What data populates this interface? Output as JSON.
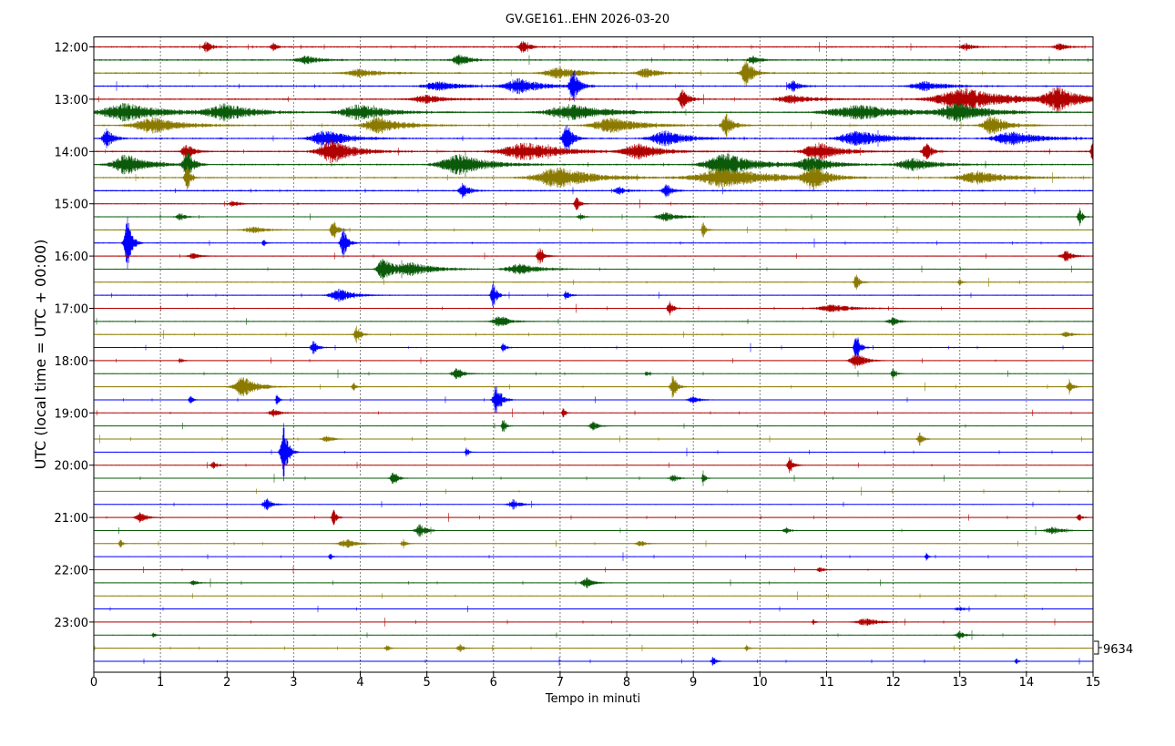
{
  "chart_data": {
    "type": "line",
    "title": "GV.GE161..EHN 2026-03-20",
    "xlabel": "Tempo in minuti",
    "ylabel": "UTC (local time = UTC + 00:00)",
    "xlim": [
      0,
      15
    ],
    "x_ticks": [
      "0",
      "1",
      "2",
      "3",
      "4",
      "5",
      "6",
      "7",
      "8",
      "9",
      "10",
      "11",
      "12",
      "13",
      "14",
      "15"
    ],
    "y_tick_labels": [
      "12:00",
      "13:00",
      "14:00",
      "15:00",
      "16:00",
      "17:00",
      "18:00",
      "19:00",
      "20:00",
      "21:00",
      "22:00",
      "23:00"
    ],
    "scale_label": "9634",
    "grid": "vertical dotted",
    "colors": [
      "#b00000",
      "#0a5a0a",
      "#8a7a00",
      "#0000ff"
    ],
    "traces_start": "12:00",
    "trace_minutes": 15,
    "events": [
      {
        "row": 0,
        "t": 1.7,
        "a": 0.45,
        "d": 0.08
      },
      {
        "row": 0,
        "t": 2.7,
        "a": 0.3,
        "d": 0.06
      },
      {
        "row": 0,
        "t": 6.45,
        "a": 0.55,
        "d": 0.08
      },
      {
        "row": 0,
        "t": 13.1,
        "a": 0.25,
        "d": 0.1
      },
      {
        "row": 0,
        "t": 14.5,
        "a": 0.3,
        "d": 0.1
      },
      {
        "row": 1,
        "t": 3.2,
        "a": 0.3,
        "d": 0.2
      },
      {
        "row": 1,
        "t": 5.5,
        "a": 0.45,
        "d": 0.15
      },
      {
        "row": 1,
        "t": 9.9,
        "a": 0.3,
        "d": 0.1
      },
      {
        "row": 2,
        "t": 4.0,
        "a": 0.3,
        "d": 0.3
      },
      {
        "row": 2,
        "t": 7.0,
        "a": 0.45,
        "d": 0.3
      },
      {
        "row": 2,
        "t": 9.8,
        "a": 1.1,
        "d": 0.1
      },
      {
        "row": 2,
        "t": 8.3,
        "a": 0.35,
        "d": 0.2
      },
      {
        "row": 3,
        "t": 5.2,
        "a": 0.35,
        "d": 0.3
      },
      {
        "row": 3,
        "t": 6.4,
        "a": 0.6,
        "d": 0.3
      },
      {
        "row": 3,
        "t": 7.2,
        "a": 1.3,
        "d": 0.08
      },
      {
        "row": 3,
        "t": 10.5,
        "a": 0.4,
        "d": 0.1
      },
      {
        "row": 3,
        "t": 12.5,
        "a": 0.35,
        "d": 0.3
      },
      {
        "row": 4,
        "t": 8.85,
        "a": 0.85,
        "d": 0.08
      },
      {
        "row": 4,
        "t": 13.1,
        "a": 0.85,
        "d": 0.6
      },
      {
        "row": 4,
        "t": 14.5,
        "a": 0.9,
        "d": 0.3
      },
      {
        "row": 4,
        "t": 5.0,
        "a": 0.3,
        "d": 0.3
      },
      {
        "row": 4,
        "t": 10.5,
        "a": 0.35,
        "d": 0.3
      },
      {
        "row": 5,
        "t": 0.5,
        "a": 0.7,
        "d": 0.5
      },
      {
        "row": 5,
        "t": 2.0,
        "a": 0.6,
        "d": 0.4
      },
      {
        "row": 5,
        "t": 4.0,
        "a": 0.6,
        "d": 0.4
      },
      {
        "row": 5,
        "t": 7.2,
        "a": 0.6,
        "d": 0.5
      },
      {
        "row": 5,
        "t": 11.5,
        "a": 0.6,
        "d": 0.6
      },
      {
        "row": 5,
        "t": 13.0,
        "a": 0.7,
        "d": 0.4
      },
      {
        "row": 6,
        "t": 0.9,
        "a": 0.6,
        "d": 0.4
      },
      {
        "row": 6,
        "t": 4.3,
        "a": 0.7,
        "d": 0.3
      },
      {
        "row": 6,
        "t": 9.5,
        "a": 0.9,
        "d": 0.1
      },
      {
        "row": 6,
        "t": 13.5,
        "a": 0.8,
        "d": 0.2
      },
      {
        "row": 6,
        "t": 7.8,
        "a": 0.6,
        "d": 0.4
      },
      {
        "row": 7,
        "t": 0.2,
        "a": 1.0,
        "d": 0.08
      },
      {
        "row": 7,
        "t": 3.5,
        "a": 0.7,
        "d": 0.3
      },
      {
        "row": 7,
        "t": 7.1,
        "a": 1.3,
        "d": 0.08
      },
      {
        "row": 7,
        "t": 8.6,
        "a": 0.6,
        "d": 0.3
      },
      {
        "row": 7,
        "t": 11.5,
        "a": 0.6,
        "d": 0.4
      },
      {
        "row": 7,
        "t": 13.8,
        "a": 0.5,
        "d": 0.4
      },
      {
        "row": 8,
        "t": 1.4,
        "a": 0.6,
        "d": 0.1
      },
      {
        "row": 8,
        "t": 3.6,
        "a": 0.9,
        "d": 0.3
      },
      {
        "row": 8,
        "t": 6.5,
        "a": 0.7,
        "d": 0.5
      },
      {
        "row": 8,
        "t": 8.2,
        "a": 0.6,
        "d": 0.3
      },
      {
        "row": 8,
        "t": 10.9,
        "a": 0.7,
        "d": 0.3
      },
      {
        "row": 8,
        "t": 12.5,
        "a": 0.7,
        "d": 0.08
      },
      {
        "row": 8,
        "t": 15.0,
        "a": 0.8,
        "d": 0.05
      },
      {
        "row": 9,
        "t": 0.5,
        "a": 0.8,
        "d": 0.3
      },
      {
        "row": 9,
        "t": 1.4,
        "a": 1.2,
        "d": 0.08
      },
      {
        "row": 9,
        "t": 5.5,
        "a": 0.8,
        "d": 0.4
      },
      {
        "row": 9,
        "t": 9.5,
        "a": 0.9,
        "d": 0.4
      },
      {
        "row": 9,
        "t": 10.8,
        "a": 0.6,
        "d": 0.3
      },
      {
        "row": 9,
        "t": 12.3,
        "a": 0.5,
        "d": 0.3
      },
      {
        "row": 10,
        "t": 1.4,
        "a": 1.3,
        "d": 0.05
      },
      {
        "row": 10,
        "t": 7.0,
        "a": 0.8,
        "d": 0.5
      },
      {
        "row": 10,
        "t": 9.5,
        "a": 0.8,
        "d": 0.6
      },
      {
        "row": 10,
        "t": 10.8,
        "a": 0.9,
        "d": 0.2
      },
      {
        "row": 10,
        "t": 13.3,
        "a": 0.5,
        "d": 0.4
      },
      {
        "row": 11,
        "t": 5.55,
        "a": 0.65,
        "d": 0.08
      },
      {
        "row": 11,
        "t": 8.6,
        "a": 0.55,
        "d": 0.08
      },
      {
        "row": 11,
        "t": 7.9,
        "a": 0.3,
        "d": 0.1
      },
      {
        "row": 12,
        "t": 7.25,
        "a": 0.6,
        "d": 0.05
      },
      {
        "row": 12,
        "t": 2.1,
        "a": 0.25,
        "d": 0.1
      },
      {
        "row": 13,
        "t": 1.3,
        "a": 0.3,
        "d": 0.08
      },
      {
        "row": 13,
        "t": 8.6,
        "a": 0.35,
        "d": 0.2
      },
      {
        "row": 13,
        "t": 14.8,
        "a": 0.8,
        "d": 0.04
      },
      {
        "row": 13,
        "t": 7.3,
        "a": 0.3,
        "d": 0.05
      },
      {
        "row": 14,
        "t": 3.6,
        "a": 0.9,
        "d": 0.06
      },
      {
        "row": 14,
        "t": 9.15,
        "a": 0.6,
        "d": 0.04
      },
      {
        "row": 14,
        "t": 2.4,
        "a": 0.25,
        "d": 0.2
      },
      {
        "row": 15,
        "t": 0.5,
        "a": 2.4,
        "d": 0.06
      },
      {
        "row": 15,
        "t": 3.75,
        "a": 1.2,
        "d": 0.06
      },
      {
        "row": 15,
        "t": 2.55,
        "a": 0.35,
        "d": 0.03
      },
      {
        "row": 16,
        "t": 6.7,
        "a": 0.8,
        "d": 0.06
      },
      {
        "row": 16,
        "t": 14.6,
        "a": 0.45,
        "d": 0.1
      },
      {
        "row": 16,
        "t": 1.5,
        "a": 0.25,
        "d": 0.1
      },
      {
        "row": 17,
        "t": 4.35,
        "a": 1.0,
        "d": 0.12
      },
      {
        "row": 17,
        "t": 4.8,
        "a": 0.5,
        "d": 0.35
      },
      {
        "row": 17,
        "t": 6.4,
        "a": 0.4,
        "d": 0.3
      },
      {
        "row": 18,
        "t": 11.45,
        "a": 0.6,
        "d": 0.05
      },
      {
        "row": 18,
        "t": 13.0,
        "a": 0.3,
        "d": 0.03
      },
      {
        "row": 19,
        "t": 6.0,
        "a": 1.1,
        "d": 0.05
      },
      {
        "row": 19,
        "t": 3.7,
        "a": 0.5,
        "d": 0.2
      },
      {
        "row": 19,
        "t": 7.1,
        "a": 0.4,
        "d": 0.05
      },
      {
        "row": 20,
        "t": 8.65,
        "a": 0.7,
        "d": 0.05
      },
      {
        "row": 20,
        "t": 11.1,
        "a": 0.3,
        "d": 0.3
      },
      {
        "row": 21,
        "t": 6.1,
        "a": 0.45,
        "d": 0.15
      },
      {
        "row": 21,
        "t": 12.0,
        "a": 0.3,
        "d": 0.1
      },
      {
        "row": 22,
        "t": 3.95,
        "a": 0.8,
        "d": 0.05
      },
      {
        "row": 22,
        "t": 14.6,
        "a": 0.2,
        "d": 0.1
      },
      {
        "row": 23,
        "t": 3.3,
        "a": 0.6,
        "d": 0.06
      },
      {
        "row": 23,
        "t": 11.45,
        "a": 1.3,
        "d": 0.05
      },
      {
        "row": 23,
        "t": 6.15,
        "a": 0.45,
        "d": 0.04
      },
      {
        "row": 24,
        "t": 11.45,
        "a": 0.7,
        "d": 0.12
      },
      {
        "row": 24,
        "t": 1.3,
        "a": 0.2,
        "d": 0.05
      },
      {
        "row": 25,
        "t": 5.45,
        "a": 0.45,
        "d": 0.1
      },
      {
        "row": 25,
        "t": 12.0,
        "a": 0.45,
        "d": 0.04
      },
      {
        "row": 25,
        "t": 8.3,
        "a": 0.3,
        "d": 0.03
      },
      {
        "row": 26,
        "t": 2.25,
        "a": 0.8,
        "d": 0.2
      },
      {
        "row": 26,
        "t": 8.7,
        "a": 1.0,
        "d": 0.06
      },
      {
        "row": 26,
        "t": 14.65,
        "a": 0.6,
        "d": 0.05
      },
      {
        "row": 26,
        "t": 3.9,
        "a": 0.35,
        "d": 0.04
      },
      {
        "row": 27,
        "t": 6.05,
        "a": 1.4,
        "d": 0.07
      },
      {
        "row": 27,
        "t": 2.75,
        "a": 0.5,
        "d": 0.03
      },
      {
        "row": 27,
        "t": 1.45,
        "a": 0.5,
        "d": 0.03
      },
      {
        "row": 27,
        "t": 9.0,
        "a": 0.3,
        "d": 0.1
      },
      {
        "row": 28,
        "t": 7.05,
        "a": 0.5,
        "d": 0.03
      },
      {
        "row": 28,
        "t": 2.7,
        "a": 0.3,
        "d": 0.1
      },
      {
        "row": 29,
        "t": 6.15,
        "a": 0.6,
        "d": 0.04
      },
      {
        "row": 29,
        "t": 7.5,
        "a": 0.35,
        "d": 0.08
      },
      {
        "row": 30,
        "t": 12.4,
        "a": 0.6,
        "d": 0.05
      },
      {
        "row": 30,
        "t": 3.5,
        "a": 0.25,
        "d": 0.1
      },
      {
        "row": 31,
        "t": 2.85,
        "a": 2.6,
        "d": 0.06
      },
      {
        "row": 31,
        "t": 5.6,
        "a": 0.4,
        "d": 0.03
      },
      {
        "row": 32,
        "t": 10.45,
        "a": 0.8,
        "d": 0.05
      },
      {
        "row": 32,
        "t": 1.8,
        "a": 0.3,
        "d": 0.06
      },
      {
        "row": 33,
        "t": 4.5,
        "a": 0.5,
        "d": 0.07
      },
      {
        "row": 33,
        "t": 9.15,
        "a": 0.6,
        "d": 0.03
      },
      {
        "row": 33,
        "t": 8.7,
        "a": 0.3,
        "d": 0.08
      },
      {
        "row": 35,
        "t": 2.6,
        "a": 0.5,
        "d": 0.08
      },
      {
        "row": 35,
        "t": 6.3,
        "a": 0.4,
        "d": 0.1
      },
      {
        "row": 36,
        "t": 0.7,
        "a": 0.4,
        "d": 0.1
      },
      {
        "row": 36,
        "t": 3.6,
        "a": 0.8,
        "d": 0.04
      },
      {
        "row": 36,
        "t": 14.8,
        "a": 0.3,
        "d": 0.05
      },
      {
        "row": 37,
        "t": 4.9,
        "a": 0.5,
        "d": 0.1
      },
      {
        "row": 37,
        "t": 14.4,
        "a": 0.3,
        "d": 0.15
      },
      {
        "row": 37,
        "t": 10.4,
        "a": 0.25,
        "d": 0.07
      },
      {
        "row": 38,
        "t": 3.8,
        "a": 0.35,
        "d": 0.15
      },
      {
        "row": 38,
        "t": 4.65,
        "a": 0.4,
        "d": 0.04
      },
      {
        "row": 38,
        "t": 0.4,
        "a": 0.4,
        "d": 0.03
      },
      {
        "row": 38,
        "t": 8.2,
        "a": 0.3,
        "d": 0.07
      },
      {
        "row": 39,
        "t": 3.55,
        "a": 0.35,
        "d": 0.03
      },
      {
        "row": 39,
        "t": 12.5,
        "a": 0.3,
        "d": 0.03
      },
      {
        "row": 40,
        "t": 10.9,
        "a": 0.25,
        "d": 0.06
      },
      {
        "row": 41,
        "t": 7.4,
        "a": 0.45,
        "d": 0.1
      },
      {
        "row": 41,
        "t": 1.5,
        "a": 0.25,
        "d": 0.06
      },
      {
        "row": 43,
        "t": 13.0,
        "a": 0.15,
        "d": 0.1
      },
      {
        "row": 44,
        "t": 11.6,
        "a": 0.3,
        "d": 0.2
      },
      {
        "row": 44,
        "t": 10.8,
        "a": 0.25,
        "d": 0.03
      },
      {
        "row": 45,
        "t": 13.0,
        "a": 0.3,
        "d": 0.08
      },
      {
        "row": 45,
        "t": 0.9,
        "a": 0.2,
        "d": 0.04
      },
      {
        "row": 46,
        "t": 5.5,
        "a": 0.3,
        "d": 0.06
      },
      {
        "row": 46,
        "t": 4.4,
        "a": 0.3,
        "d": 0.04
      },
      {
        "row": 46,
        "t": 9.8,
        "a": 0.25,
        "d": 0.04
      },
      {
        "row": 47,
        "t": 9.3,
        "a": 0.4,
        "d": 0.04
      },
      {
        "row": 47,
        "t": 13.85,
        "a": 0.25,
        "d": 0.03
      }
    ]
  }
}
